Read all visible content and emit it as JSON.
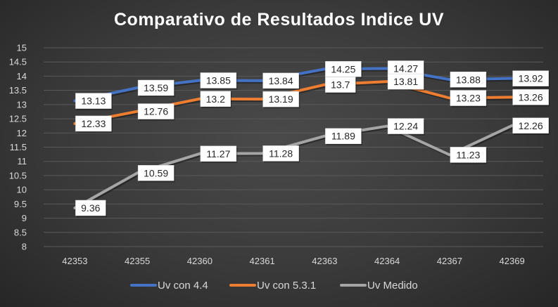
{
  "chart_data": {
    "type": "line",
    "title": "Comparativo de Resultados Indice UV",
    "xlabel": "",
    "ylabel": "",
    "categories": [
      "42353",
      "42355",
      "42360",
      "42361",
      "42363",
      "42364",
      "42367",
      "42369"
    ],
    "ylim": [
      8,
      15
    ],
    "yticks": [
      "15",
      "14.5",
      "14",
      "13.5",
      "13",
      "12.5",
      "12",
      "11.5",
      "11",
      "10.5",
      "10",
      "9.5",
      "9",
      "8.5",
      "8"
    ],
    "grid": true,
    "legend_position": "bottom",
    "series": [
      {
        "name": "Uv con 4.4",
        "color": "#4472c4",
        "values": [
          13.13,
          13.59,
          13.85,
          13.84,
          14.25,
          14.27,
          13.88,
          13.92
        ],
        "labels": [
          "13.13",
          "13.59",
          "13.85",
          "13.84",
          "14.25",
          "14.27",
          "13.88",
          "13.92"
        ]
      },
      {
        "name": "Uv con 5.3.1",
        "color": "#ed7d31",
        "values": [
          12.33,
          12.76,
          13.2,
          13.19,
          13.7,
          13.81,
          13.23,
          13.26
        ],
        "labels": [
          "12.33",
          "12.76",
          "13.2",
          "13.19",
          "13.7",
          "13.81",
          "13.23",
          "13.26"
        ]
      },
      {
        "name": "Uv Medido",
        "color": "#a5a5a5",
        "values": [
          9.36,
          10.59,
          11.27,
          11.28,
          11.89,
          12.24,
          11.23,
          12.26
        ],
        "labels": [
          "9.36",
          "10.59",
          "11.27",
          "11.28",
          "11.89",
          "12.24",
          "11.23",
          "12.26"
        ]
      }
    ]
  }
}
